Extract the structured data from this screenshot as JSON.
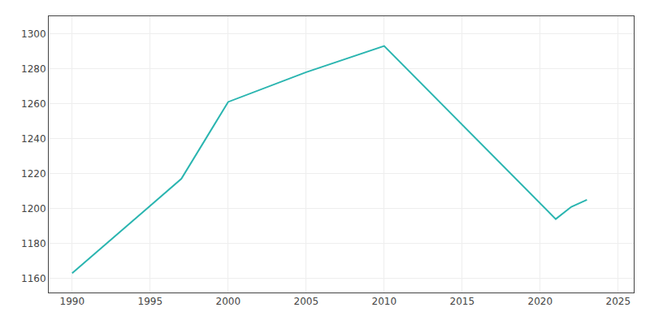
{
  "chart_data": {
    "type": "line",
    "x": [
      1990,
      1997,
      2000,
      2005,
      2010,
      2021,
      2022,
      2023
    ],
    "values": [
      1163,
      1217,
      1261,
      1278,
      1293,
      1194,
      1201,
      1205
    ],
    "color": "#2ab5b0",
    "xlim": [
      1988.5,
      2026
    ],
    "ylim": [
      1152,
      1310
    ],
    "xticks": [
      1990,
      1995,
      2000,
      2005,
      2010,
      2015,
      2020,
      2025
    ],
    "yticks": [
      1160,
      1180,
      1200,
      1220,
      1240,
      1260,
      1280,
      1300
    ],
    "grid": true
  }
}
